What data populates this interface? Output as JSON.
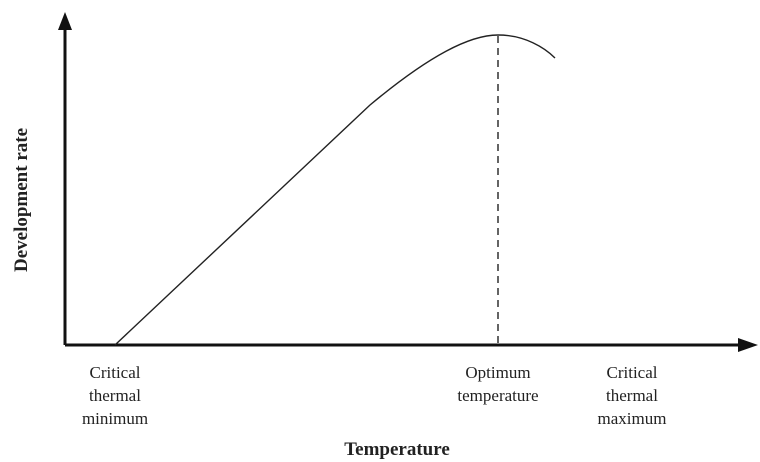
{
  "y_axis_label": "Development rate",
  "x_axis_label": "Temperature",
  "points": [
    {
      "lines": [
        "Critical",
        "thermal",
        "minimum"
      ]
    },
    {
      "lines": [
        "Optimum",
        "temperature"
      ]
    },
    {
      "lines": [
        "Critical",
        "thermal",
        "maximum"
      ]
    }
  ]
}
